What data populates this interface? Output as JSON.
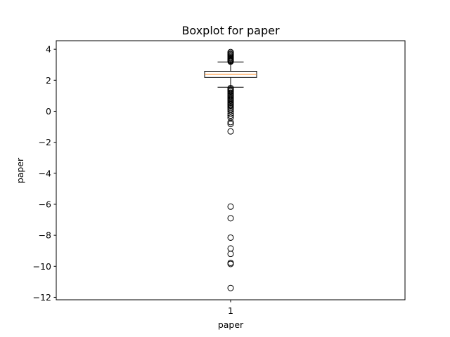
{
  "chart_data": {
    "type": "boxplot",
    "title": "Boxplot for paper",
    "xlabel": "paper",
    "ylabel": "paper",
    "ylim": [
      -12.16,
      4.55
    ],
    "yticks": [
      4,
      2,
      0,
      -2,
      -4,
      -6,
      -8,
      -10,
      -12
    ],
    "ytick_labels": [
      "4",
      "2",
      "0",
      "−2",
      "−4",
      "−6",
      "−8",
      "−10",
      "−12"
    ],
    "categories": [
      "1"
    ],
    "series": [
      {
        "name": "paper",
        "whisker_low": 1.55,
        "q1": 2.18,
        "median": 2.38,
        "q3": 2.58,
        "whisker_high": 3.18,
        "outliers": [
          3.82,
          3.75,
          3.68,
          3.62,
          3.55,
          3.48,
          3.42,
          3.36,
          3.3,
          3.25,
          3.2,
          1.5,
          1.42,
          1.35,
          1.28,
          1.2,
          1.12,
          1.05,
          0.98,
          0.9,
          0.82,
          0.75,
          0.68,
          0.6,
          0.52,
          0.45,
          0.38,
          0.3,
          0.2,
          0.1,
          0.0,
          -0.15,
          -0.28,
          -0.42,
          -0.7,
          -0.82,
          -1.3,
          -6.15,
          -6.9,
          -8.15,
          -8.85,
          -9.2,
          -9.78,
          -9.85,
          -11.4
        ]
      }
    ],
    "colors": {
      "box": "#000000",
      "median": "#ff7f0e",
      "flier": "#000000"
    },
    "grid": false
  }
}
